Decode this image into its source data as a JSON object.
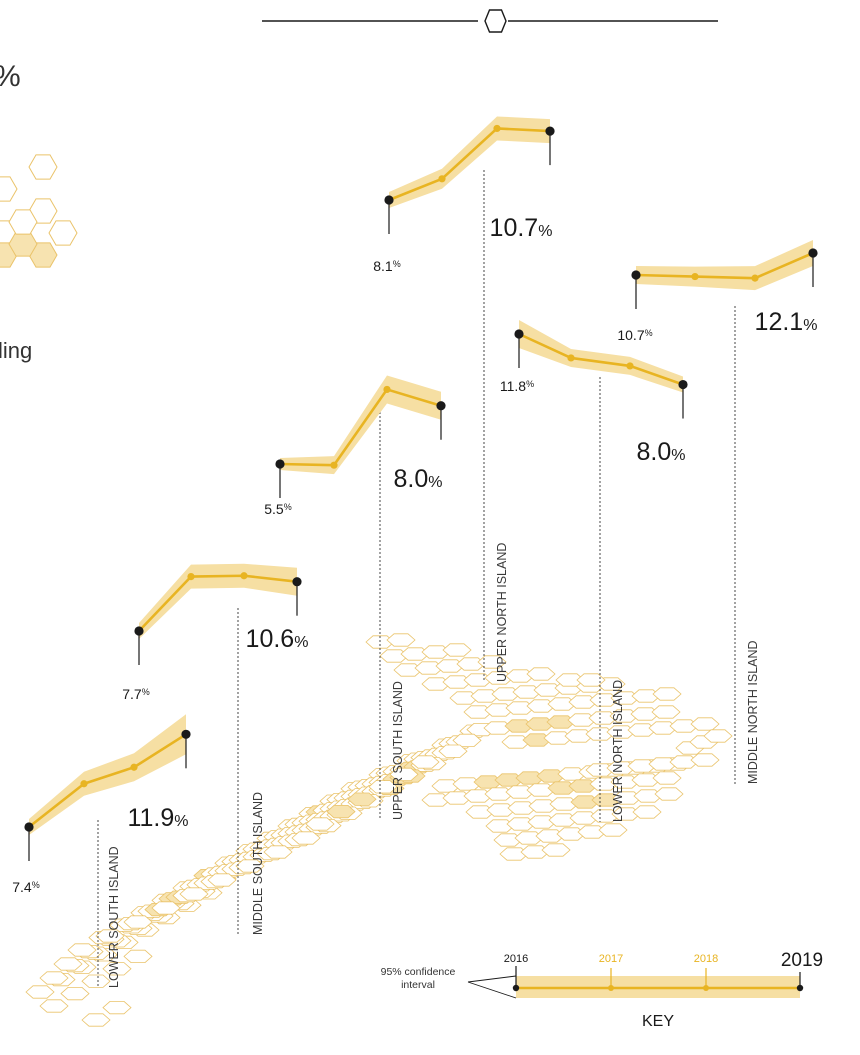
{
  "header_partial": {
    "percent_fragment": "%",
    "text_fragment": "ling"
  },
  "colors": {
    "line": "#e8b422",
    "band": "#f6dfa3",
    "hex_fill": "#f7e3b0",
    "hex_stroke": "#eac36a",
    "dot": "#1a1a1a"
  },
  "chart_data": {
    "type": "line",
    "x": [
      2016,
      2017,
      2018,
      2019
    ],
    "unit": "%",
    "series": [
      {
        "name": "LOWER SOUTH ISLAND",
        "values": [
          7.4,
          9.5,
          10.3,
          11.9
        ],
        "start_label": "7.4",
        "end_label": "11.9"
      },
      {
        "name": "MIDDLE SOUTH ISLAND",
        "values": [
          7.7,
          10.9,
          10.95,
          10.6
        ],
        "start_label": "7.7",
        "end_label": "10.6"
      },
      {
        "name": "UPPER SOUTH ISLAND",
        "values": [
          5.5,
          5.45,
          8.7,
          8.0
        ],
        "start_label": "5.5",
        "end_label": "8.0"
      },
      {
        "name": "UPPER NORTH ISLAND",
        "values": [
          8.1,
          8.9,
          10.8,
          10.7
        ],
        "start_label": "8.1",
        "end_label": "10.7"
      },
      {
        "name": "LOWER NORTH ISLAND",
        "values": [
          11.8,
          10.0,
          9.4,
          8.0
        ],
        "start_label": "11.8",
        "end_label": "8.0"
      },
      {
        "name": "MIDDLE NORTH ISLAND",
        "values": [
          10.7,
          10.6,
          10.5,
          12.1
        ],
        "start_label": "10.7",
        "end_label": "12.1"
      }
    ]
  },
  "key": {
    "title": "KEY",
    "years": [
      "2016",
      "2017",
      "2018",
      "2019"
    ],
    "confidence_label_line1": "95% confidence",
    "confidence_label_line2": "interval"
  }
}
